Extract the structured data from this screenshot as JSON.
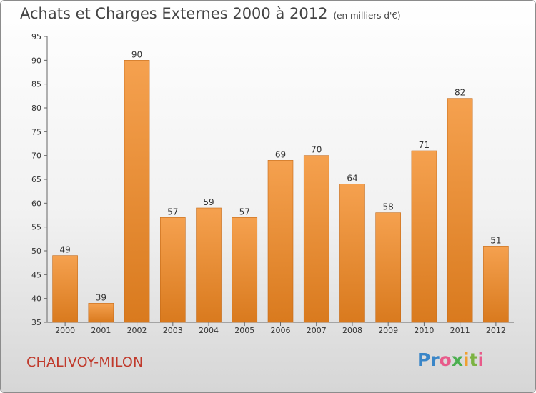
{
  "header": {
    "title": "Achats et Charges Externes 2000 à 2012",
    "unit": "(en milliers d'€)"
  },
  "footer": {
    "commune": "CHALIVOY-MILON",
    "logo_letters": [
      "P",
      "r",
      "o",
      "x",
      "i",
      "t",
      "i"
    ]
  },
  "colors": {
    "bar_top": "#f5a14f",
    "bar_bottom": "#d97a1e",
    "commune": "#c0392b",
    "logo": [
      "#3a86c8",
      "#3a86c8",
      "#e85b8a",
      "#4caf50",
      "#f0a030",
      "#7cb342",
      "#e85b8a"
    ]
  },
  "chart_data": {
    "type": "bar",
    "title": "Achats et Charges Externes 2000 à 2012",
    "ylabel": "",
    "xlabel": "",
    "categories": [
      "2000",
      "2001",
      "2002",
      "2003",
      "2004",
      "2005",
      "2006",
      "2007",
      "2008",
      "2009",
      "2010",
      "2011",
      "2012"
    ],
    "values": [
      49,
      39,
      90,
      57,
      59,
      57,
      69,
      70,
      64,
      58,
      71,
      82,
      51
    ],
    "ylim": [
      35,
      95
    ],
    "yticks": [
      35,
      40,
      45,
      50,
      55,
      60,
      65,
      70,
      75,
      80,
      85,
      90,
      95
    ],
    "grid": false,
    "data_labels": true
  }
}
